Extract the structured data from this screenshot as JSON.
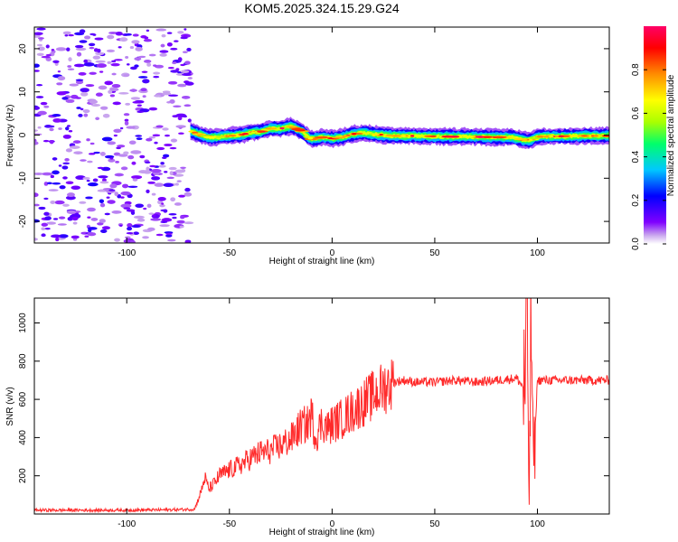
{
  "title": "KOM5.2025.324.15.29.G24",
  "colorbar": {
    "label": "Normalized spectral amplitude",
    "ticks": [
      "0.0",
      "0.2",
      "0.4",
      "0.6",
      "0.8"
    ],
    "tick_values": [
      0.0,
      0.2,
      0.4,
      0.6,
      0.8
    ],
    "range": [
      0,
      1
    ],
    "colormap": [
      "#ffffff",
      "#c9a6ee",
      "#7f00ff",
      "#0000ff",
      "#00c8ff",
      "#00ff6a",
      "#aaff00",
      "#ffff00",
      "#ff8c00",
      "#ff0000",
      "#ff0066"
    ]
  },
  "chart_data": [
    {
      "type": "heatmap",
      "xlabel": "Height of straight line (km)",
      "ylabel": "Frequency (Hz)",
      "xlim": [
        -145,
        135
      ],
      "ylim": [
        -25,
        25
      ],
      "x_ticks": [
        -100,
        -50,
        0,
        50,
        100
      ],
      "x_tick_labels": [
        "-100",
        "-50",
        "0",
        "50",
        "100"
      ],
      "y_ticks": [
        -20,
        -10,
        0,
        10,
        20
      ],
      "y_tick_labels": [
        "-20",
        "-10",
        "0",
        "10",
        "20"
      ],
      "noise_region_x": [
        -145,
        -69
      ],
      "signal_onset_x": -69,
      "ridge_centerline": {
        "x": [
          -69,
          -65,
          -60,
          -55,
          -50,
          -45,
          -40,
          -35,
          -30,
          -25,
          -20,
          -15,
          -12,
          -10,
          -5,
          0,
          5,
          10,
          15,
          20,
          25,
          30,
          40,
          50,
          60,
          70,
          80,
          88,
          92,
          96,
          100,
          110,
          120,
          135
        ],
        "frequency_hz": [
          1.0,
          0.2,
          -0.5,
          -0.5,
          -0.2,
          0.0,
          0.5,
          0.8,
          1.5,
          1.5,
          2.0,
          1.0,
          -0.2,
          -1.0,
          -0.5,
          -0.8,
          -0.5,
          0.2,
          0.5,
          0.2,
          0.0,
          -0.2,
          -0.2,
          -0.3,
          -0.4,
          -0.4,
          -0.5,
          -0.5,
          -1.0,
          -1.3,
          -0.4,
          -0.3,
          -0.2,
          -0.2
        ]
      },
      "grid": false
    },
    {
      "type": "line",
      "xlabel": "Height of straight line (km)",
      "ylabel": "SNR (v/v)",
      "xlim": [
        -145,
        135
      ],
      "ylim": [
        0,
        1130
      ],
      "x_ticks": [
        -100,
        -50,
        0,
        50,
        100
      ],
      "x_tick_labels": [
        "-100",
        "-50",
        "0",
        "50",
        "100"
      ],
      "y_ticks": [
        200,
        400,
        600,
        800,
        1000
      ],
      "y_tick_labels": [
        "200",
        "400",
        "600",
        "800",
        "1000"
      ],
      "series": [
        {
          "color": "#ff2a2a",
          "x": [
            -145,
            -120,
            -100,
            -80,
            -67,
            -64,
            -62,
            -60,
            -57,
            -55,
            -50,
            -45,
            -40,
            -35,
            -30,
            -25,
            -20,
            -18,
            -15,
            -12,
            -10,
            -8,
            -5,
            -2,
            0,
            5,
            10,
            15,
            20,
            25,
            30,
            35,
            40,
            50,
            60,
            70,
            80,
            90,
            94,
            95,
            96,
            97,
            98,
            100,
            110,
            120,
            135
          ],
          "y": [
            20,
            20,
            20,
            22,
            25,
            110,
            190,
            130,
            165,
            200,
            230,
            255,
            290,
            320,
            330,
            360,
            390,
            420,
            460,
            470,
            520,
            400,
            480,
            450,
            470,
            500,
            540,
            580,
            620,
            660,
            690,
            700,
            690,
            690,
            700,
            690,
            700,
            710,
            650,
            1080,
            60,
            1100,
            230,
            700,
            700,
            700,
            700
          ]
        }
      ],
      "grid": false
    }
  ]
}
